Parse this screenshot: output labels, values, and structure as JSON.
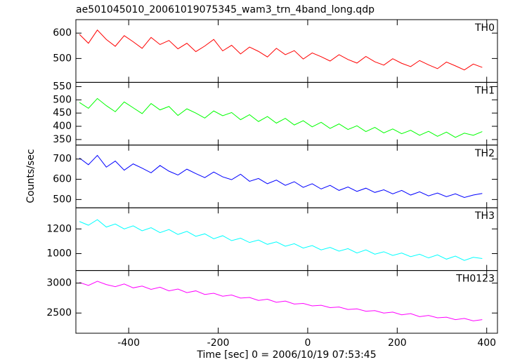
{
  "title": "ae501045010_20061019075345_wam3_trn_4band_long.qdp",
  "y_label": "Counts/sec",
  "chart_data": [
    {
      "type": "line",
      "series": [
        {
          "name": "TH0",
          "color": "#ff0000",
          "values": [
            595,
            560,
            612,
            575,
            548,
            590,
            566,
            540,
            583,
            555,
            571,
            538,
            560,
            527,
            549,
            575,
            530,
            552,
            518,
            545,
            528,
            506,
            540,
            515,
            531,
            498,
            522,
            507,
            490,
            515,
            496,
            482,
            508,
            487,
            474,
            499,
            481,
            468,
            492,
            475,
            460,
            486,
            471,
            455,
            478,
            465
          ]
        }
      ],
      "x": [
        -510,
        -490,
        -470,
        -450,
        -430,
        -410,
        -390,
        -370,
        -350,
        -330,
        -310,
        -290,
        -270,
        -250,
        -230,
        -210,
        -190,
        -170,
        -150,
        -130,
        -110,
        -90,
        -70,
        -50,
        -30,
        -10,
        10,
        30,
        50,
        70,
        90,
        110,
        130,
        150,
        170,
        190,
        210,
        230,
        250,
        270,
        290,
        310,
        330,
        350,
        370,
        390
      ],
      "ylim": [
        406,
        653
      ],
      "yticks": [
        500,
        600
      ]
    },
    {
      "type": "line",
      "series": [
        {
          "name": "TH1",
          "color": "#00ff00",
          "values": [
            490,
            468,
            505,
            478,
            455,
            492,
            470,
            448,
            486,
            462,
            475,
            441,
            466,
            450,
            431,
            458,
            440,
            452,
            425,
            444,
            418,
            437,
            412,
            430,
            405,
            421,
            398,
            415,
            392,
            409,
            388,
            402,
            380,
            396,
            375,
            390,
            372,
            385,
            366,
            381,
            362,
            378,
            358,
            374,
            366,
            380
          ]
        }
      ],
      "x": [
        -510,
        -490,
        -470,
        -450,
        -430,
        -410,
        -390,
        -370,
        -350,
        -330,
        -310,
        -290,
        -270,
        -250,
        -230,
        -210,
        -190,
        -170,
        -150,
        -130,
        -110,
        -90,
        -70,
        -50,
        -30,
        -10,
        10,
        30,
        50,
        70,
        90,
        110,
        130,
        150,
        170,
        190,
        210,
        230,
        250,
        270,
        290,
        310,
        330,
        350,
        370,
        390
      ],
      "ylim": [
        329,
        566
      ],
      "yticks": [
        350,
        400,
        450,
        500,
        550
      ]
    },
    {
      "type": "line",
      "series": [
        {
          "name": "TH2",
          "color": "#0000ff",
          "values": [
            705,
            672,
            718,
            660,
            690,
            645,
            676,
            655,
            632,
            668,
            640,
            621,
            650,
            628,
            608,
            636,
            612,
            598,
            625,
            590,
            604,
            578,
            596,
            570,
            588,
            560,
            578,
            552,
            570,
            545,
            562,
            540,
            556,
            535,
            548,
            528,
            545,
            522,
            538,
            518,
            532,
            514,
            528,
            510,
            522,
            530
          ]
        }
      ],
      "x": [
        -510,
        -490,
        -470,
        -450,
        -430,
        -410,
        -390,
        -370,
        -350,
        -330,
        -310,
        -290,
        -270,
        -250,
        -230,
        -210,
        -190,
        -170,
        -150,
        -130,
        -110,
        -90,
        -70,
        -50,
        -30,
        -10,
        10,
        30,
        50,
        70,
        90,
        110,
        130,
        150,
        170,
        190,
        210,
        230,
        250,
        270,
        290,
        310,
        330,
        350,
        370,
        390
      ],
      "ylim": [
        459,
        769
      ],
      "yticks": [
        500,
        600,
        700
      ]
    },
    {
      "type": "line",
      "series": [
        {
          "name": "TH3",
          "color": "#00ffff",
          "values": [
            1260,
            1230,
            1275,
            1215,
            1240,
            1200,
            1225,
            1185,
            1210,
            1170,
            1195,
            1155,
            1180,
            1140,
            1160,
            1120,
            1145,
            1105,
            1125,
            1090,
            1110,
            1075,
            1095,
            1060,
            1080,
            1045,
            1065,
            1030,
            1050,
            1020,
            1040,
            1005,
            1030,
            995,
            1015,
            985,
            1005,
            975,
            995,
            965,
            990,
            955,
            980,
            945,
            970,
            960
          ]
        }
      ],
      "x": [
        -510,
        -490,
        -470,
        -450,
        -430,
        -410,
        -390,
        -370,
        -350,
        -330,
        -310,
        -290,
        -270,
        -250,
        -230,
        -210,
        -190,
        -170,
        -150,
        -130,
        -110,
        -90,
        -70,
        -50,
        -30,
        -10,
        10,
        30,
        50,
        70,
        90,
        110,
        130,
        150,
        170,
        190,
        210,
        230,
        250,
        270,
        290,
        310,
        330,
        350,
        370,
        390
      ],
      "ylim": [
        863,
        1371
      ],
      "yticks": [
        1000,
        1200
      ]
    },
    {
      "type": "line",
      "series": [
        {
          "name": "TH0123",
          "color": "#ff00ff",
          "values": [
            3010,
            2960,
            3030,
            2975,
            2940,
            2985,
            2920,
            2950,
            2895,
            2930,
            2870,
            2900,
            2840,
            2870,
            2810,
            2830,
            2780,
            2800,
            2750,
            2760,
            2710,
            2730,
            2680,
            2700,
            2650,
            2660,
            2620,
            2630,
            2590,
            2600,
            2560,
            2570,
            2530,
            2540,
            2500,
            2515,
            2470,
            2490,
            2440,
            2460,
            2420,
            2430,
            2390,
            2410,
            2370,
            2390
          ]
        }
      ],
      "x": [
        -510,
        -490,
        -470,
        -450,
        -430,
        -410,
        -390,
        -370,
        -350,
        -330,
        -310,
        -290,
        -270,
        -250,
        -230,
        -210,
        -190,
        -170,
        -150,
        -130,
        -110,
        -90,
        -70,
        -50,
        -30,
        -10,
        10,
        30,
        50,
        70,
        90,
        110,
        130,
        150,
        170,
        190,
        210,
        230,
        250,
        270,
        290,
        310,
        330,
        350,
        370,
        390
      ],
      "ylim": [
        2163,
        3209
      ],
      "yticks": [
        2500,
        3000
      ],
      "xlim": [
        -518,
        424
      ],
      "xticks": [
        -400,
        -200,
        0,
        200,
        400
      ],
      "x_label": "Time [sec] 0 = 2006/10/19 07:53:45"
    }
  ]
}
